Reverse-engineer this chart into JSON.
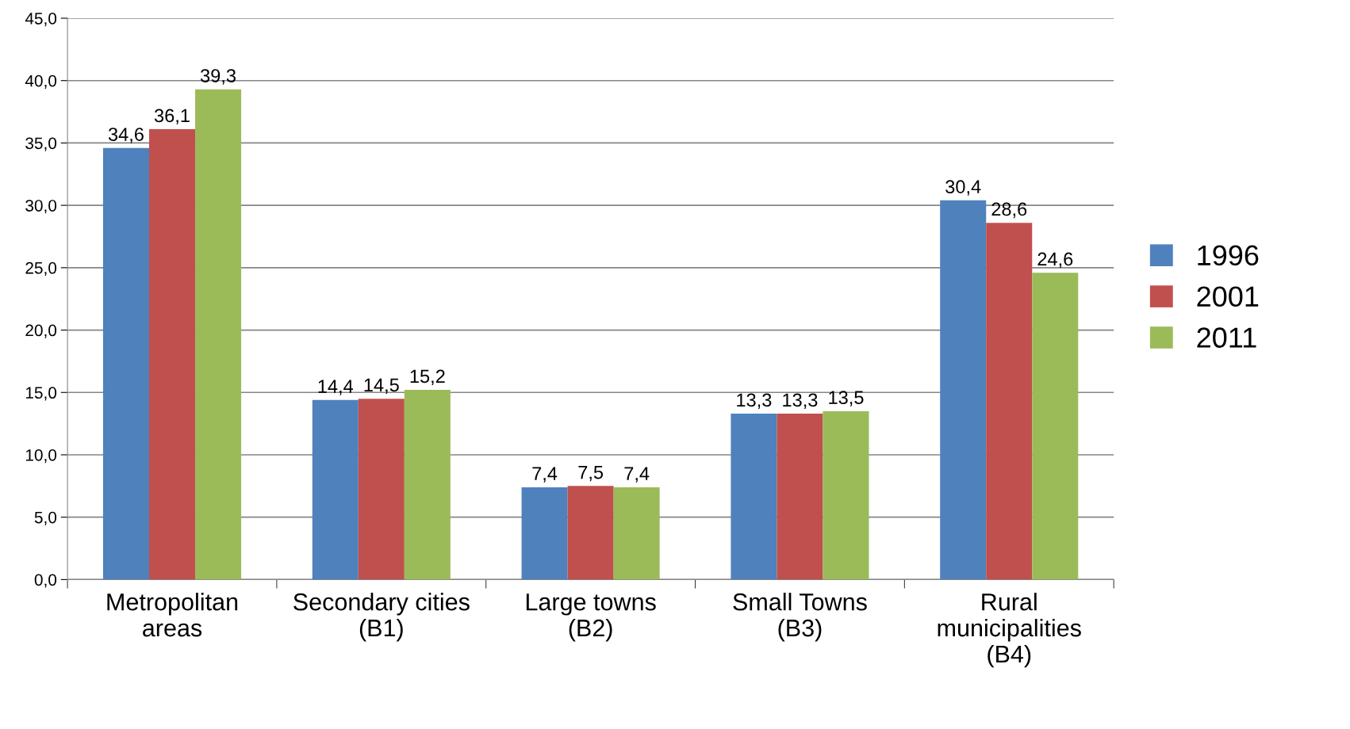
{
  "chart_data": {
    "type": "bar",
    "categories": [
      "Metropolitan\nareas",
      "Secondary cities\n(B1)",
      "Large towns\n(B2)",
      "Small Towns\n(B3)",
      "Rural\nmunicipalities\n(B4)"
    ],
    "series": [
      {
        "name": "1996",
        "color": "#4f81bd",
        "values": [
          34.6,
          14.4,
          7.4,
          13.3,
          30.4
        ],
        "value_labels": [
          "34,6",
          "14,4",
          "7,4",
          "13,3",
          "30,4"
        ]
      },
      {
        "name": "2001",
        "color": "#c0504d",
        "values": [
          36.1,
          14.5,
          7.5,
          13.3,
          28.6
        ],
        "value_labels": [
          "36,1",
          "14,5",
          "7,5",
          "13,3",
          "28,6"
        ]
      },
      {
        "name": "2011",
        "color": "#9bbb59",
        "values": [
          39.3,
          15.2,
          7.4,
          13.5,
          24.6
        ],
        "value_labels": [
          "39,3",
          "15,2",
          "7,4",
          "13,5",
          "24,6"
        ]
      }
    ],
    "ylim": [
      0,
      45
    ],
    "yticks": [
      {
        "value": 0,
        "label": "0,0"
      },
      {
        "value": 5,
        "label": "5,0"
      },
      {
        "value": 10,
        "label": "10,0"
      },
      {
        "value": 15,
        "label": "15,0"
      },
      {
        "value": 20,
        "label": "20,0"
      },
      {
        "value": 25,
        "label": "25,0"
      },
      {
        "value": 30,
        "label": "30,0"
      },
      {
        "value": 35,
        "label": "35,0"
      },
      {
        "value": 40,
        "label": "40,0"
      },
      {
        "value": 45,
        "label": "45,0"
      }
    ],
    "grid": "y",
    "legend": "right"
  }
}
